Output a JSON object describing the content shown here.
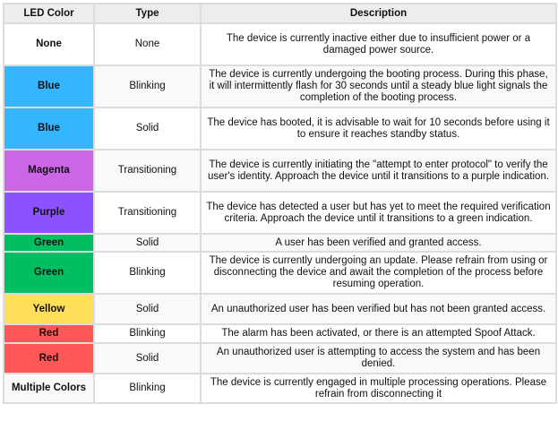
{
  "headers": [
    "LED Color",
    "Type",
    "Description"
  ],
  "rows": [
    {
      "color": "None",
      "type": "None",
      "description": "The device is currently inactive either due to insufficient power or a damaged power source.",
      "swatch": "#ffffff",
      "h": 47
    },
    {
      "color": "Blue",
      "type": "Blinking",
      "description": "The device is currently undergoing the booting process. During this phase, it will intermittently flash for 30 seconds until a steady blue light signals the completion of the booting process.",
      "swatch": "#33b5ff",
      "h": 47
    },
    {
      "color": "Blue",
      "type": "Solid",
      "description": "The device has booted, it is advisable to wait for 10 seconds before using it to ensure it reaches standby status.",
      "swatch": "#33b5ff",
      "h": 47
    },
    {
      "color": "Magenta",
      "type": "Transitioning",
      "description": "The device is currently initiating the \"attempt to enter protocol\" to verify the user's identity. Approach the device until it transitions to a purple indication.",
      "swatch": "#cc66e6",
      "h": 47
    },
    {
      "color": "Purple",
      "type": "Transitioning",
      "description": "The device has detected a user but has yet to meet the required verification criteria. Approach the device until it transitions to a green indication.",
      "swatch": "#8c52ff",
      "h": 47
    },
    {
      "color": "Green",
      "type": "Solid",
      "description": "A user has been verified and granted access.",
      "swatch": "#00bf63",
      "h": 20
    },
    {
      "color": "Green",
      "type": "Blinking",
      "description": "The device is currently undergoing an update. Please refrain from using or disconnecting the device and await the completion of the process before resuming operation.",
      "swatch": "#00bf63",
      "h": 47
    },
    {
      "color": "Yellow",
      "type": "Solid",
      "description": "An unauthorized user has been verified but has not been granted access.",
      "swatch": "#ffde59",
      "h": 34
    },
    {
      "color": "Red",
      "type": "Blinking",
      "description": "The alarm has been activated, or there is an attempted Spoof Attack.",
      "swatch": "#ff5757",
      "h": 21
    },
    {
      "color": "Red",
      "type": "Solid",
      "description": "An unauthorized user is attempting to access the system and has been denied.",
      "swatch": "#ff5757",
      "h": 34
    },
    {
      "color": "Multiple Colors",
      "type": "Blinking",
      "description": "The device is currently engaged in multiple processing operations. Please refrain from disconnecting it",
      "swatch": "#f9f9f9",
      "h": 33
    }
  ]
}
